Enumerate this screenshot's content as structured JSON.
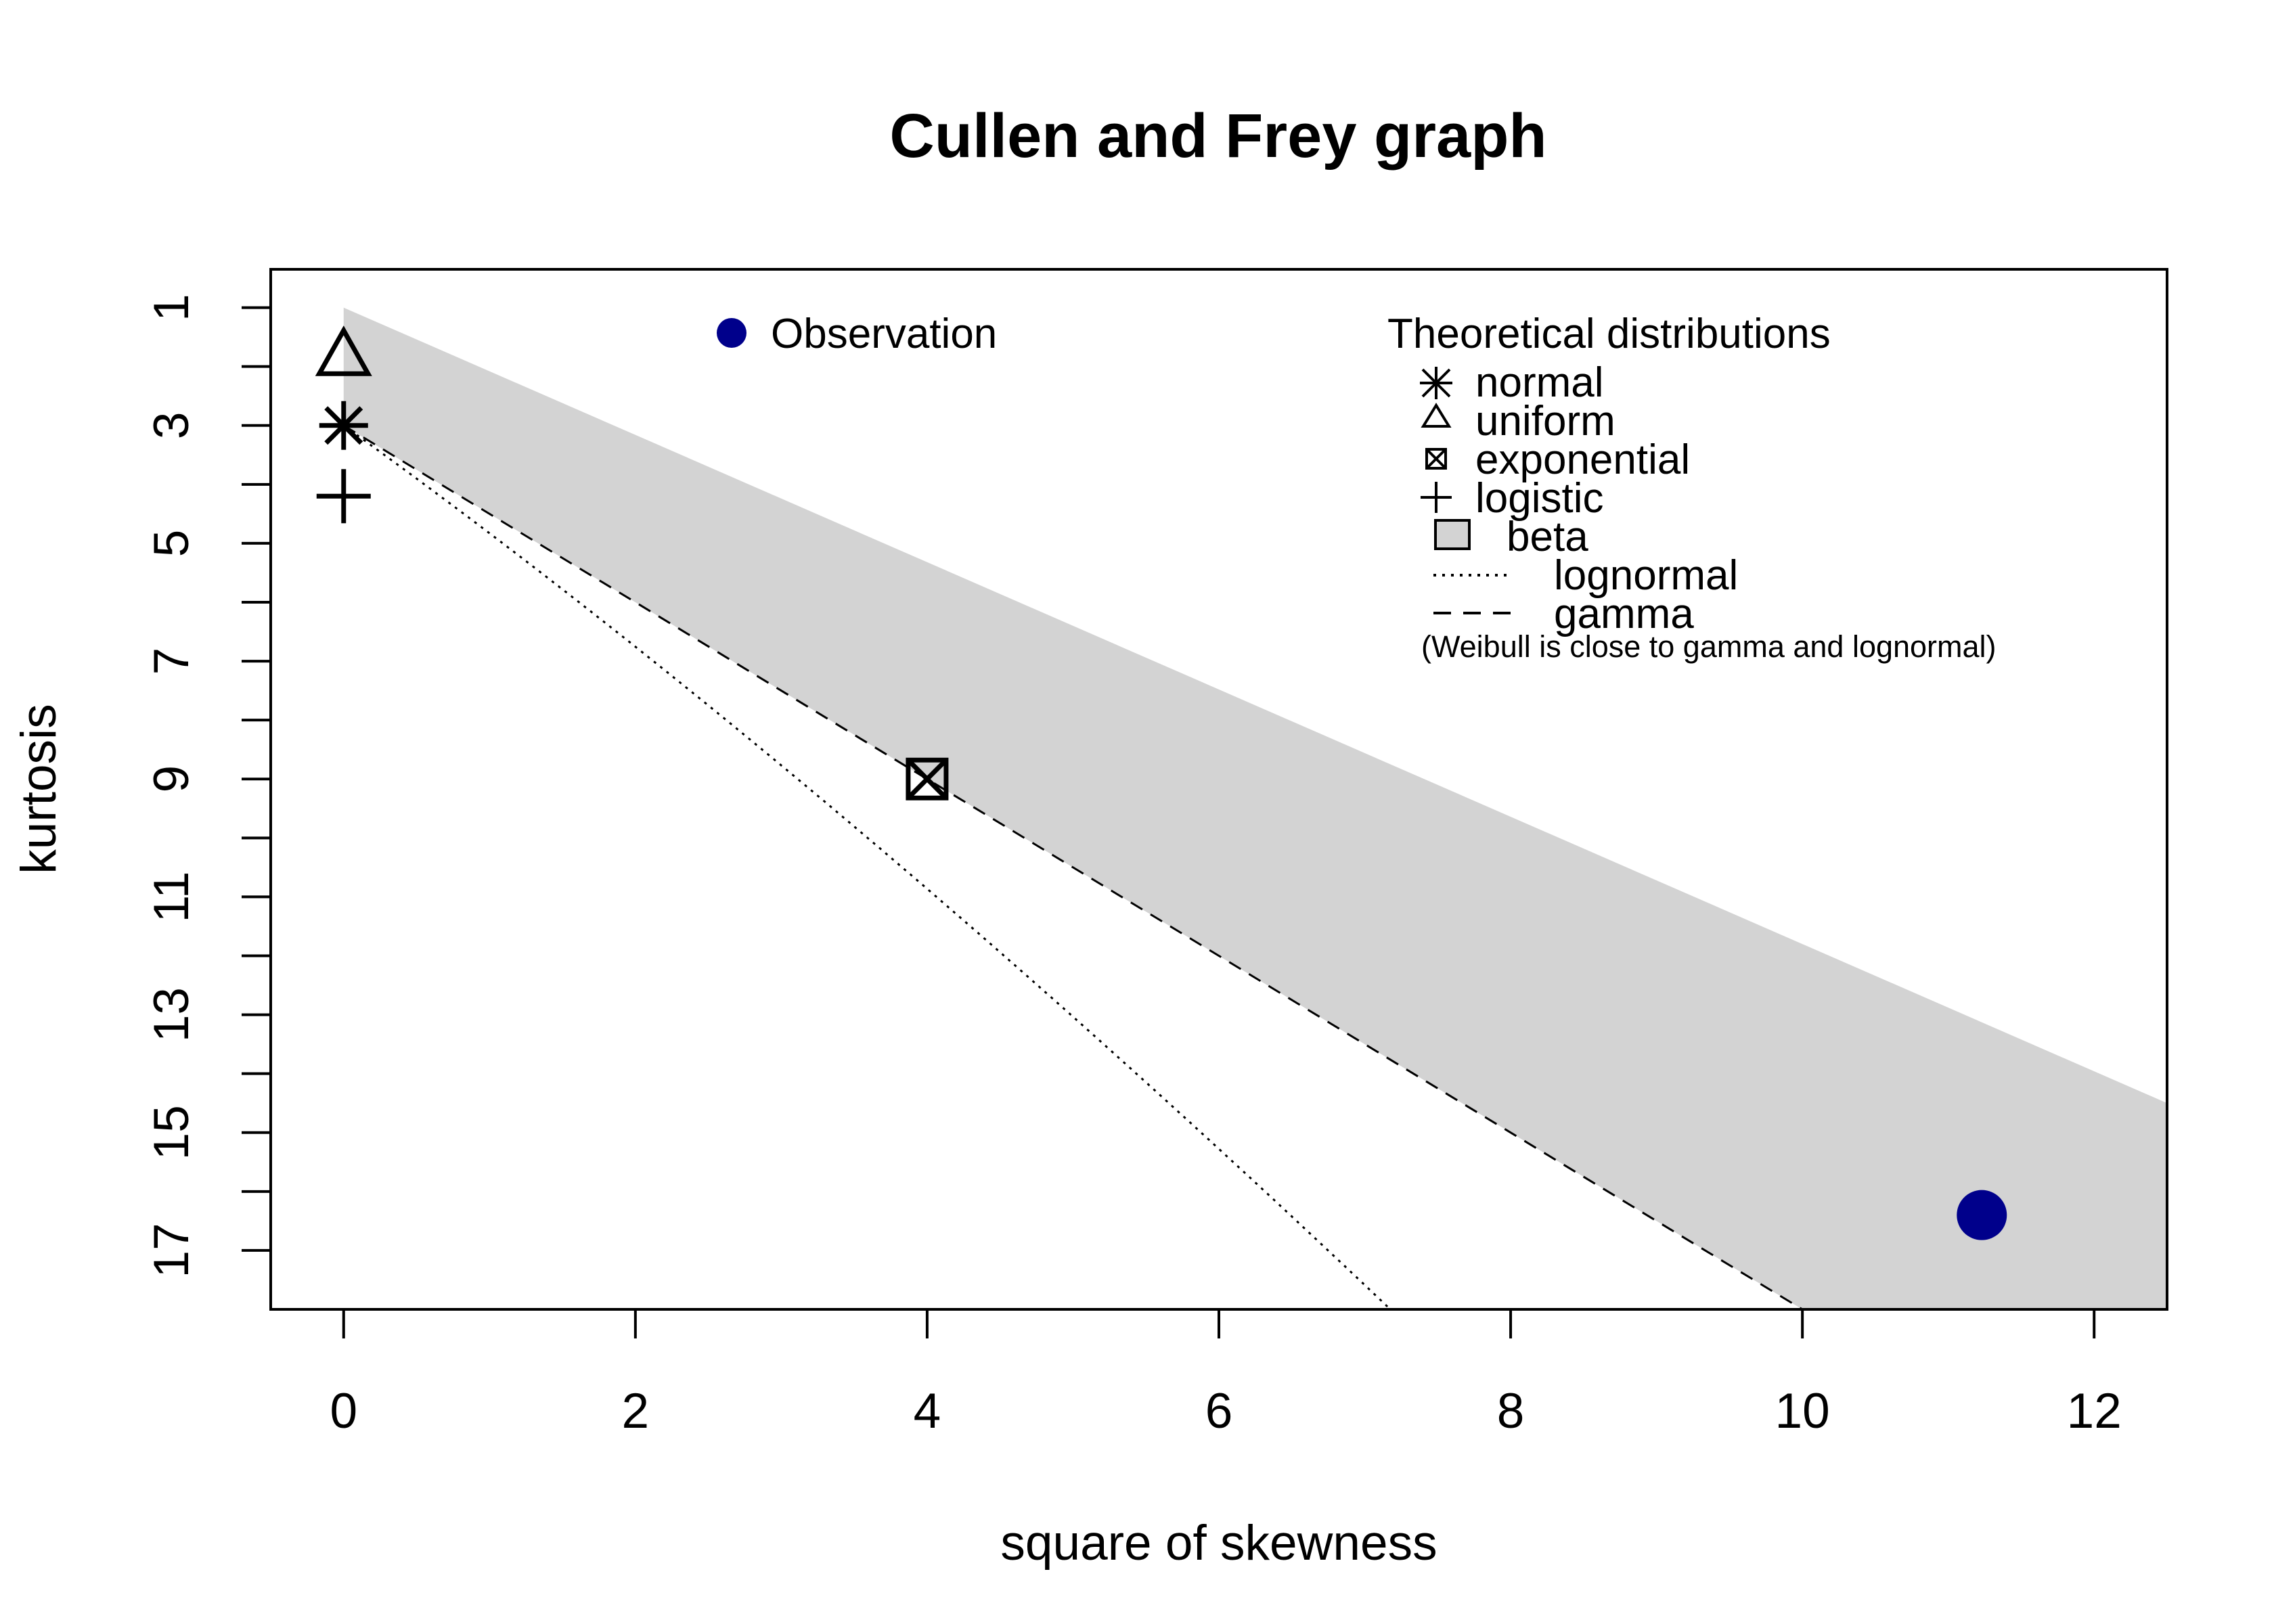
{
  "chart_data": {
    "type": "scatter",
    "title": "Cullen and Frey graph",
    "xlabel": "square of skewness",
    "ylabel": "kurtosis",
    "xlim": [
      -0.5,
      12.5
    ],
    "ylim": [
      18,
      0.35
    ],
    "y_axis_inverted": true,
    "x_ticks": [
      0,
      2,
      4,
      6,
      8,
      10,
      12
    ],
    "y_ticks": [
      1,
      3,
      5,
      7,
      9,
      11,
      13,
      15,
      17
    ],
    "y_minor_ticks": [
      2,
      4,
      6,
      8,
      10,
      12,
      14,
      16
    ],
    "colors": {
      "observation": "#00008B",
      "beta_region": "#D3D3D3",
      "axis": "#000000"
    },
    "beta_region": {
      "upper_bound": {
        "x": [
          0,
          12.5
        ],
        "y": [
          1,
          14.5
        ]
      },
      "lower_bound": {
        "x": [
          0,
          12.5
        ],
        "y": [
          3,
          21.75
        ]
      }
    },
    "observation": {
      "label": "Observation",
      "x": 11.23,
      "y": 16.4
    },
    "theoretical_points": [
      {
        "name": "uniform",
        "symbol": "triangle",
        "x": 0,
        "y": 1.8
      },
      {
        "name": "normal",
        "symbol": "asterisk",
        "x": 0,
        "y": 3.0
      },
      {
        "name": "logistic",
        "symbol": "plus",
        "x": 0,
        "y": 4.2
      },
      {
        "name": "exponential",
        "symbol": "boxed-x",
        "x": 4,
        "y": 9.0
      }
    ],
    "lines": [
      {
        "name": "gamma",
        "style": "dashed",
        "formula": "y = 3 + 1.5x",
        "x_range": [
          0,
          12.5
        ]
      },
      {
        "name": "lognormal",
        "style": "dotted",
        "x_range": [
          0,
          7.2
        ]
      }
    ]
  },
  "legend": {
    "observation_label": "Observation",
    "theoretical_title": "Theoretical distributions",
    "items": {
      "normal": "normal",
      "uniform": "uniform",
      "exponential": "exponential",
      "logistic": "logistic",
      "beta": "beta",
      "lognormal": "lognormal",
      "gamma": "gamma"
    },
    "note": "(Weibull is close to gamma and lognormal)"
  }
}
